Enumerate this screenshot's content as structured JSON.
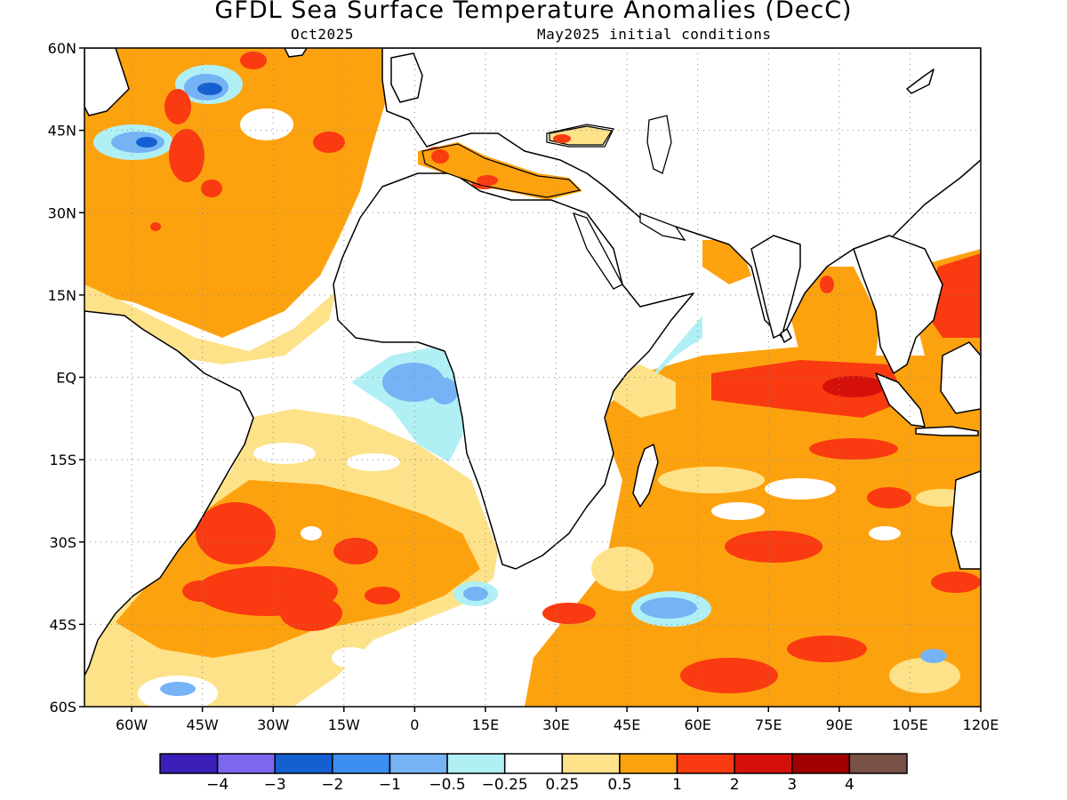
{
  "header": {
    "title": "GFDL Sea Surface Temperature Anomalies (DecC)",
    "valid_month": "Oct2025",
    "init_conditions": "May2025 initial conditions"
  },
  "map": {
    "lon_range": [
      -70,
      120
    ],
    "lat_range": [
      -60,
      60
    ],
    "lat_ticks": [
      {
        "value": 60,
        "label": "60N"
      },
      {
        "value": 45,
        "label": "45N"
      },
      {
        "value": 30,
        "label": "30N"
      },
      {
        "value": 15,
        "label": "15N"
      },
      {
        "value": 0,
        "label": "EQ"
      },
      {
        "value": -15,
        "label": "15S"
      },
      {
        "value": -30,
        "label": "30S"
      },
      {
        "value": -45,
        "label": "45S"
      },
      {
        "value": -60,
        "label": "60S"
      }
    ],
    "lon_ticks": [
      {
        "value": -60,
        "label": "60W"
      },
      {
        "value": -45,
        "label": "45W"
      },
      {
        "value": -30,
        "label": "30W"
      },
      {
        "value": -15,
        "label": "15W"
      },
      {
        "value": 0,
        "label": "0"
      },
      {
        "value": 15,
        "label": "15E"
      },
      {
        "value": 30,
        "label": "30E"
      },
      {
        "value": 45,
        "label": "45E"
      },
      {
        "value": 60,
        "label": "60E"
      },
      {
        "value": 75,
        "label": "75E"
      },
      {
        "value": 90,
        "label": "90E"
      },
      {
        "value": 105,
        "label": "105E"
      },
      {
        "value": 120,
        "label": "120E"
      }
    ],
    "gridlines": "dotted"
  },
  "colorbar": {
    "colors": [
      "#3b1fb8",
      "#7b68ee",
      "#1560d0",
      "#3c8ef0",
      "#75b3f5",
      "#b0f0f5",
      "#ffffff",
      "#fde289",
      "#fda20f",
      "#fa3a10",
      "#d5100a",
      "#a00000",
      "#7a5146"
    ],
    "labels": [
      "−4",
      "−3",
      "−2",
      "−1",
      "−0.5",
      "−0.25",
      "0.25",
      "0.5",
      "1",
      "2",
      "3",
      "4"
    ]
  }
}
